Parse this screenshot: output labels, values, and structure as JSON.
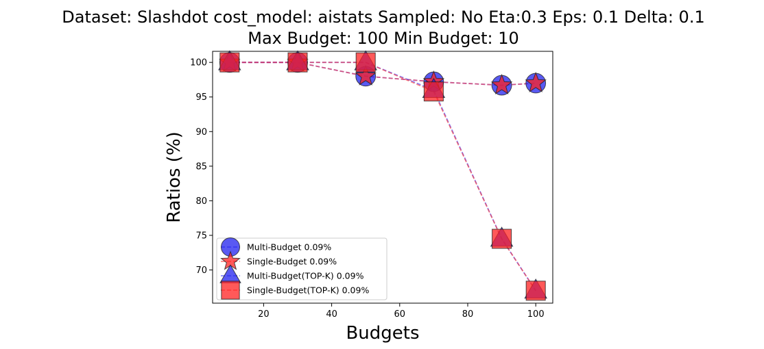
{
  "chart_data": {
    "type": "line",
    "title_lines": [
      "Dataset: Slashdot cost_model: aistats Sampled: No Eta:0.3 Eps: 0.1 Delta: 0.1",
      "Max Budget: 100 Min Budget: 10"
    ],
    "xlabel": "Budgets",
    "ylabel": "Ratios (%)",
    "xlim": [
      5,
      105
    ],
    "ylim": [
      65.2,
      101.6
    ],
    "xticks": [
      20,
      40,
      60,
      80,
      100
    ],
    "yticks": [
      70,
      75,
      80,
      85,
      90,
      95,
      100
    ],
    "legend_position": "lower-left",
    "grid": false,
    "series": [
      {
        "name": "Multi-Budget 0.09%",
        "marker": "circle",
        "fill": "#2222ee",
        "line_color": "#3333ff",
        "x": [
          10,
          30,
          50,
          70,
          90,
          100
        ],
        "values": [
          100,
          100,
          98.0,
          97.2,
          96.7,
          97.0
        ]
      },
      {
        "name": "Single-Budget 0.09%",
        "marker": "star",
        "fill": "#ff2222",
        "line_color": "#ff3333",
        "x": [
          10,
          30,
          50,
          70,
          90,
          100
        ],
        "values": [
          100,
          100,
          98.0,
          97.2,
          96.7,
          97.0
        ]
      },
      {
        "name": "Multi-Budget(TOP-K) 0.09%",
        "marker": "triangle",
        "fill": "#2222ee",
        "line_color": "#3333ff",
        "x": [
          10,
          30,
          50,
          70,
          90,
          100
        ],
        "values": [
          100,
          100,
          100,
          96.0,
          74.5,
          67.0
        ]
      },
      {
        "name": "Single-Budget(TOP-K) 0.09%",
        "marker": "square",
        "fill": "#ff2222",
        "line_color": "#ff3333",
        "x": [
          10,
          30,
          50,
          70,
          90,
          100
        ],
        "values": [
          100,
          100,
          100,
          95.8,
          74.5,
          67.0
        ]
      }
    ]
  }
}
